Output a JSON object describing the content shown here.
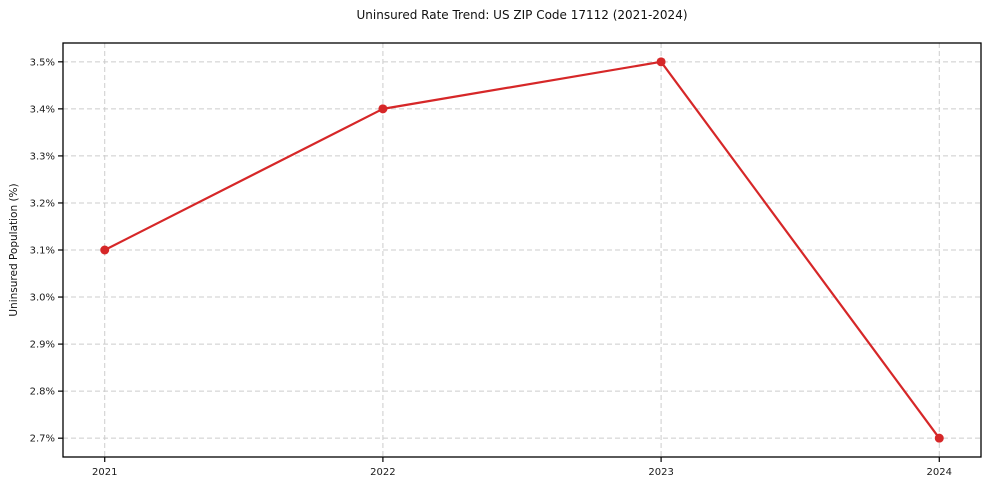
{
  "chart_data": {
    "type": "line",
    "title": "Uninsured Rate Trend: US ZIP Code 17112 (2021-2024)",
    "xlabel": "",
    "ylabel": "Uninsured Population (%)",
    "x": [
      2021,
      2022,
      2023,
      2024
    ],
    "series": [
      {
        "name": "Uninsured rate",
        "values": [
          3.1,
          3.4,
          3.5,
          2.7
        ]
      }
    ],
    "xticks": [
      2021,
      2022,
      2023,
      2024
    ],
    "xtick_labels": [
      "2021",
      "2022",
      "2023",
      "2024"
    ],
    "yticks": [
      2.7,
      2.8,
      2.9,
      3.0,
      3.1,
      3.2,
      3.3,
      3.4,
      3.5
    ],
    "ytick_labels": [
      "2.7%",
      "2.8%",
      "2.9%",
      "3.0%",
      "3.1%",
      "3.2%",
      "3.3%",
      "3.4%",
      "3.5%"
    ],
    "xlim": [
      2020.85,
      2024.15
    ],
    "ylim": [
      2.66,
      3.54
    ],
    "grid": true,
    "legend": "none",
    "line_color": "#d62728",
    "marker": "circle",
    "grid_color": "#cccccc",
    "spine_color": "#000000",
    "background_color": "#ffffff"
  }
}
